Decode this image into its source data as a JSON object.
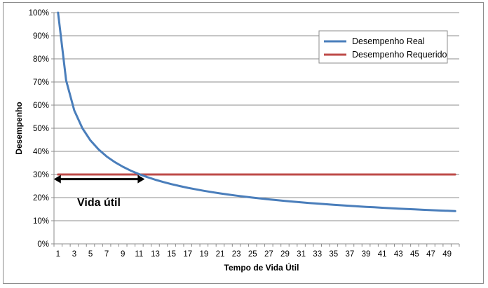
{
  "chart_data": {
    "type": "line",
    "xlabel": "Tempo de Vida Útil",
    "ylabel": "Desempenho",
    "ylim": [
      0,
      1
    ],
    "xlim": [
      1,
      50
    ],
    "y_ticks": [
      0,
      0.1,
      0.2,
      0.3,
      0.4,
      0.5,
      0.6,
      0.7,
      0.8,
      0.9,
      1.0
    ],
    "y_tick_labels": [
      "0%",
      "10%",
      "20%",
      "30%",
      "40%",
      "50%",
      "60%",
      "70%",
      "80%",
      "90%",
      "100%"
    ],
    "x_tick_labels": [
      "1",
      "3",
      "5",
      "7",
      "9",
      "11",
      "13",
      "15",
      "17",
      "19",
      "21",
      "23",
      "25",
      "27",
      "29",
      "31",
      "33",
      "35",
      "37",
      "39",
      "41",
      "43",
      "45",
      "47",
      "49"
    ],
    "x": [
      1,
      2,
      3,
      4,
      5,
      6,
      7,
      8,
      9,
      10,
      11,
      12,
      13,
      14,
      15,
      16,
      17,
      18,
      19,
      20,
      21,
      22,
      23,
      24,
      25,
      26,
      27,
      28,
      29,
      30,
      31,
      32,
      33,
      34,
      35,
      36,
      37,
      38,
      39,
      40,
      41,
      42,
      43,
      44,
      45,
      46,
      47,
      48,
      49,
      50
    ],
    "grid": true,
    "legend_position": "top-right",
    "series": [
      {
        "name": "Desempenho Real",
        "color": "#4a7ebb",
        "values": [
          1.0,
          0.7071,
          0.5774,
          0.5,
          0.4472,
          0.4082,
          0.378,
          0.3536,
          0.3333,
          0.3162,
          0.3015,
          0.2887,
          0.2774,
          0.2673,
          0.2582,
          0.25,
          0.2425,
          0.2357,
          0.2294,
          0.2236,
          0.2182,
          0.2132,
          0.2085,
          0.2041,
          0.2,
          0.1961,
          0.1925,
          0.189,
          0.1857,
          0.1826,
          0.1796,
          0.1768,
          0.1741,
          0.1715,
          0.169,
          0.1667,
          0.1644,
          0.1622,
          0.1601,
          0.1581,
          0.1562,
          0.1543,
          0.1525,
          0.1508,
          0.1491,
          0.1474,
          0.1459,
          0.1443,
          0.1429,
          0.1414
        ]
      },
      {
        "name": "Desempenho Requerido",
        "color": "#be4b48",
        "values": [
          0.3,
          0.3,
          0.3,
          0.3,
          0.3,
          0.3,
          0.3,
          0.3,
          0.3,
          0.3,
          0.3,
          0.3,
          0.3,
          0.3,
          0.3,
          0.3,
          0.3,
          0.3,
          0.3,
          0.3,
          0.3,
          0.3,
          0.3,
          0.3,
          0.3,
          0.3,
          0.3,
          0.3,
          0.3,
          0.3,
          0.3,
          0.3,
          0.3,
          0.3,
          0.3,
          0.3,
          0.3,
          0.3,
          0.3,
          0.3,
          0.3,
          0.3,
          0.3,
          0.3,
          0.3,
          0.3,
          0.3,
          0.3,
          0.3,
          0.3
        ]
      }
    ],
    "annotations": [
      {
        "text": "Vida útil",
        "arrow_from_x": 1,
        "arrow_to_x": 11,
        "arrow_y": 0.28
      }
    ]
  }
}
